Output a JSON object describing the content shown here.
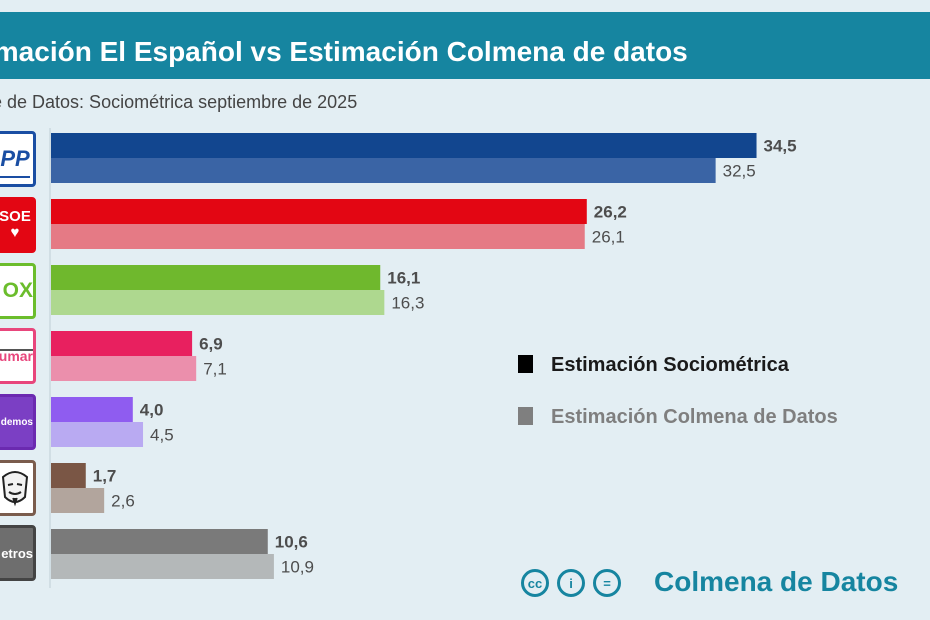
{
  "title": "imación El Español vs Estimación Colmena de datos",
  "subtitle": "e de Datos: Sociométrica septiembre de 2025",
  "logos": {
    "pp": "PP",
    "psoe": "SOE",
    "psoe_symbol": "♥",
    "vox": "OX",
    "sumar": "umar",
    "podemos": "demos",
    "otros": "etros"
  },
  "brand": "Colmena de Datos",
  "license_icons": [
    "cc-icon",
    "by-icon",
    "nd-icon"
  ],
  "license_labels": [
    "cc",
    "i",
    "="
  ],
  "colors": {
    "title_bar": "#1685a0",
    "background": "#e3eef3"
  },
  "chart_data": {
    "type": "bar",
    "orientation": "horizontal",
    "categories": [
      "PP",
      "PSOE",
      "VOX",
      "Sumar",
      "Podemos",
      "SALF",
      "Otros"
    ],
    "series": [
      {
        "name": "Estimación Sociométrica",
        "values": [
          34.5,
          26.2,
          16.1,
          6.9,
          4.0,
          1.7,
          10.6
        ],
        "labels": [
          "34,5",
          "26,2",
          "16,1",
          "6,9",
          "4,0",
          "1,7",
          "10,6"
        ],
        "colors": [
          "#12468f",
          "#e30613",
          "#6fb82d",
          "#e8205f",
          "#8f5cf0",
          "#7a5645",
          "#7a7a7a"
        ]
      },
      {
        "name": "Estimación Colmena de Datos",
        "values": [
          32.5,
          26.1,
          16.3,
          7.1,
          4.5,
          2.6,
          10.9
        ],
        "labels": [
          "32,5",
          "26,1",
          "16,3",
          "7,1",
          "4,5",
          "2,6",
          "10,9"
        ],
        "colors": [
          "#3a64a5",
          "#e57a85",
          "#aed88f",
          "#eb8fac",
          "#b9aaf2",
          "#b2a59d",
          "#b4b8b9"
        ]
      }
    ],
    "legend_position": "right",
    "grid": false
  }
}
